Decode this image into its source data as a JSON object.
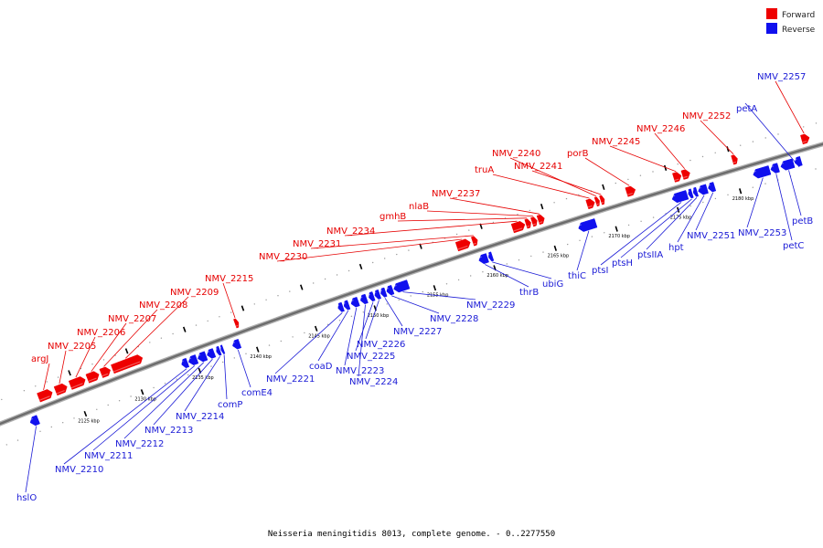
{
  "caption": "Neisseria meningitidis 8013, complete genome. - 0..2277550",
  "legend": [
    {
      "label": "Forward",
      "color": "#ee0000"
    },
    {
      "label": "Reverse",
      "color": "#1010ee"
    }
  ],
  "colors": {
    "forward": "#ee0000",
    "reverse": "#1010ee",
    "forward_label": "#e60000",
    "reverse_label": "#1a1ad6",
    "backbone": "#888888"
  },
  "ticks": [
    {
      "kbp": 2125,
      "label": "2125 kbp"
    },
    {
      "kbp": 2130,
      "label": "2130 kbp"
    },
    {
      "kbp": 2135,
      "label": "2135 kbp"
    },
    {
      "kbp": 2140,
      "label": "2140 kbp"
    },
    {
      "kbp": 2145,
      "label": "2145 kbp"
    },
    {
      "kbp": 2150,
      "label": "2150 kbp"
    },
    {
      "kbp": 2155,
      "label": "2155 kbp"
    },
    {
      "kbp": 2160,
      "label": "2160 kbp"
    },
    {
      "kbp": 2165,
      "label": "2165 kbp"
    },
    {
      "kbp": 2170,
      "label": "2170 kbp"
    },
    {
      "kbp": 2175,
      "label": "2175 kbp"
    },
    {
      "kbp": 2180,
      "label": "2180 kbp"
    }
  ],
  "forward_genes": [
    {
      "name": "argJ",
      "start": 2121.9,
      "end": 2123.1
    },
    {
      "name": "NMV_2205",
      "start": 2123.4,
      "end": 2124.4
    },
    {
      "name": "NMV_2206",
      "start": 2124.7,
      "end": 2126.0
    },
    {
      "name": "NMV_2207",
      "start": 2126.2,
      "end": 2127.2
    },
    {
      "name": "NMV_2208",
      "start": 2127.4,
      "end": 2128.2
    },
    {
      "name": "NMV_2209",
      "start": 2128.4,
      "end": 2131.0
    },
    {
      "name": "NMV_2215",
      "start": 2139.0,
      "end": 2139.3
    },
    {
      "name": "NMV_2230",
      "start": 2157.7,
      "end": 2158.8
    },
    {
      "name": "NMV_2231",
      "start": 2159.0,
      "end": 2159.4
    },
    {
      "name": "NMV_2234",
      "start": 2162.3,
      "end": 2163.3
    },
    {
      "name": "gmhB",
      "start": 2163.4,
      "end": 2163.8
    },
    {
      "name": "nlaB",
      "start": 2163.9,
      "end": 2164.3
    },
    {
      "name": "NMV_2237",
      "start": 2164.4,
      "end": 2164.9
    },
    {
      "name": "truA",
      "start": 2168.4,
      "end": 2169.0
    },
    {
      "name": "NMV_2240",
      "start": 2169.1,
      "end": 2169.4
    },
    {
      "name": "NMV_2241",
      "start": 2169.5,
      "end": 2169.8
    },
    {
      "name": "porB",
      "start": 2171.6,
      "end": 2172.3
    },
    {
      "name": "NMV_2245",
      "start": 2175.4,
      "end": 2176.0
    },
    {
      "name": "NMV_2246",
      "start": 2176.1,
      "end": 2176.7
    },
    {
      "name": "NMV_2252",
      "start": 2180.1,
      "end": 2180.5
    },
    {
      "name": "NMV_2257",
      "start": 2185.6,
      "end": 2186.2
    }
  ],
  "reverse_genes": [
    {
      "name": "hslO",
      "start": 2120.5,
      "end": 2121.2
    },
    {
      "name": "NMV_2210",
      "start": 2133.8,
      "end": 2134.3
    },
    {
      "name": "NMV_2211",
      "start": 2134.4,
      "end": 2135.1
    },
    {
      "name": "NMV_2212",
      "start": 2135.2,
      "end": 2135.9
    },
    {
      "name": "NMV_2213",
      "start": 2136.0,
      "end": 2136.6
    },
    {
      "name": "NMV_2214",
      "start": 2136.8,
      "end": 2137.1
    },
    {
      "name": "comP",
      "start": 2137.2,
      "end": 2137.4
    },
    {
      "name": "comE4",
      "start": 2138.2,
      "end": 2138.8
    },
    {
      "name": "NMV_2221",
      "start": 2147.2,
      "end": 2147.6
    },
    {
      "name": "coaD",
      "start": 2147.7,
      "end": 2148.1
    },
    {
      "name": "NMV_2223",
      "start": 2148.3,
      "end": 2148.9
    },
    {
      "name": "NMV_2224",
      "start": 2149.1,
      "end": 2149.6
    },
    {
      "name": "NMV_2225",
      "start": 2149.8,
      "end": 2150.2
    },
    {
      "name": "NMV_2226",
      "start": 2150.3,
      "end": 2150.7
    },
    {
      "name": "NMV_2227",
      "start": 2150.8,
      "end": 2151.2
    },
    {
      "name": "NMV_2228",
      "start": 2151.3,
      "end": 2151.8
    },
    {
      "name": "NMV_2229",
      "start": 2151.9,
      "end": 2153.1
    },
    {
      "name": "thrB",
      "start": 2159.0,
      "end": 2159.7
    },
    {
      "name": "ubiG",
      "start": 2159.8,
      "end": 2160.1
    },
    {
      "name": "thiC",
      "start": 2167.2,
      "end": 2168.6
    },
    {
      "name": "ptsI",
      "start": 2174.8,
      "end": 2176.0
    },
    {
      "name": "ptsH",
      "start": 2176.1,
      "end": 2176.4
    },
    {
      "name": "ptsIIA",
      "start": 2176.5,
      "end": 2176.8
    },
    {
      "name": "hpt",
      "start": 2176.9,
      "end": 2177.6
    },
    {
      "name": "NMV_2251",
      "start": 2177.7,
      "end": 2178.2
    },
    {
      "name": "NMV_2253",
      "start": 2181.3,
      "end": 2182.6
    },
    {
      "name": "petC",
      "start": 2182.7,
      "end": 2183.3
    },
    {
      "name": "petB",
      "start": 2183.5,
      "end": 2184.5
    },
    {
      "name": "petA",
      "start": 2184.6,
      "end": 2185.1
    }
  ]
}
